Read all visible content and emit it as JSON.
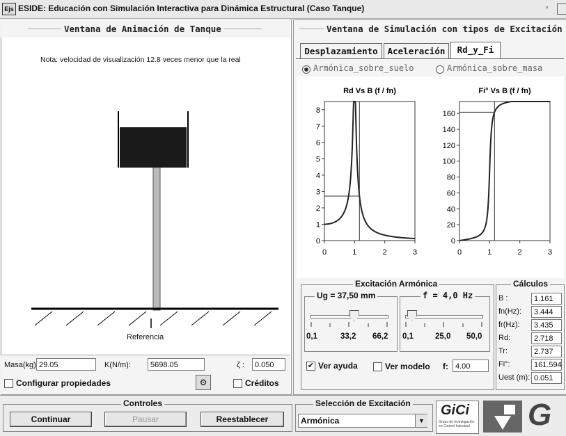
{
  "window": {
    "app_icon": "Ejs",
    "title": "ESIDE: Educación con Simulación Interactiva para Dinámica Estructural (Caso Tanque)"
  },
  "left": {
    "title": "Ventana de Animación de Tanque",
    "note": "Nota: velocidad de visualización  12.8  veces menor que la real",
    "reference_label": "Referencia",
    "mass_label": "Masa(kg):",
    "mass_value": "29.05",
    "k_label": "K(N/m):",
    "k_value": "5698.05",
    "zeta_label": "ζ :",
    "zeta_value": "0.050",
    "config_label": "Configurar propiedades",
    "credits_label": "Créditos"
  },
  "right": {
    "title": "Ventana de Simulación con tipos de Excitación",
    "tabs": [
      "Desplazamiento",
      "Aceleración",
      "Rd_y_Fi"
    ],
    "radio_ground": "Armónica_sobre_suelo",
    "radio_mass": "Armónica_sobre_masa",
    "chart1_title": "Rd Vs B (f / fn)",
    "chart2_title": "Fi° Vs  B (f / fn)",
    "excitation_title": "Excitación Armónica",
    "ug_label": "Ug = 37,50 mm",
    "ug_ticks": [
      "0,1",
      "33,2",
      "66,2"
    ],
    "ug_value": 0.56,
    "f_label": "f = 4,0 Hz",
    "f_ticks": [
      "0,1",
      "25,0",
      "50,0"
    ],
    "f_value": 0.08,
    "help_label": "Ver ayuda",
    "model_label": "Ver modelo",
    "f_field_label": "f:",
    "f_field_value": "4.00",
    "calc_title": "Cálculos",
    "calc": [
      {
        "label": "B :",
        "value": "1.161"
      },
      {
        "label": "fn(Hz):",
        "value": "3.444"
      },
      {
        "label": "fr(Hz):",
        "value": "3.435"
      },
      {
        "label": "Rd:",
        "value": "2.718"
      },
      {
        "label": "Tr:",
        "value": "2.737"
      },
      {
        "label": "Fi°:",
        "value": "161.594"
      },
      {
        "label": "Uest (m):",
        "value": "0.051"
      }
    ]
  },
  "bottom": {
    "controls_title": "Controles",
    "continue": "Continuar",
    "pause": "Pausar",
    "reset": "Reestablecer",
    "selection_title": "Selección de Excitación",
    "selection_value": "Armónica",
    "logo_gici": "GiCi",
    "logo_gici_sub": "Grupo de Investigación en Control Industrial"
  },
  "chart_data": [
    {
      "type": "line",
      "title": "Rd Vs B (f / fn)",
      "xlim": [
        0,
        3
      ],
      "ylim": [
        0,
        8.5
      ],
      "xticks": [
        "0",
        "1",
        "2",
        "3"
      ],
      "yticks": [
        "0",
        "1",
        "2",
        "3",
        "4",
        "5",
        "6",
        "7",
        "8"
      ],
      "zeta": 0.05,
      "marker": {
        "x": 1.161,
        "y": 2.718
      }
    },
    {
      "type": "line",
      "title": "Fi° Vs  B (f / fn)",
      "xlim": [
        0,
        3
      ],
      "ylim": [
        0,
        175
      ],
      "xticks": [
        "0",
        "1",
        "2",
        "3"
      ],
      "yticks": [
        "0",
        "20",
        "40",
        "60",
        "80",
        "100",
        "120",
        "140",
        "160"
      ],
      "zeta": 0.05,
      "marker": {
        "x": 1.161,
        "y": 161.594
      }
    }
  ],
  "colors": {
    "curve": "#222222",
    "tank": "#1a1a1a",
    "panel": "#f4f4f4"
  }
}
